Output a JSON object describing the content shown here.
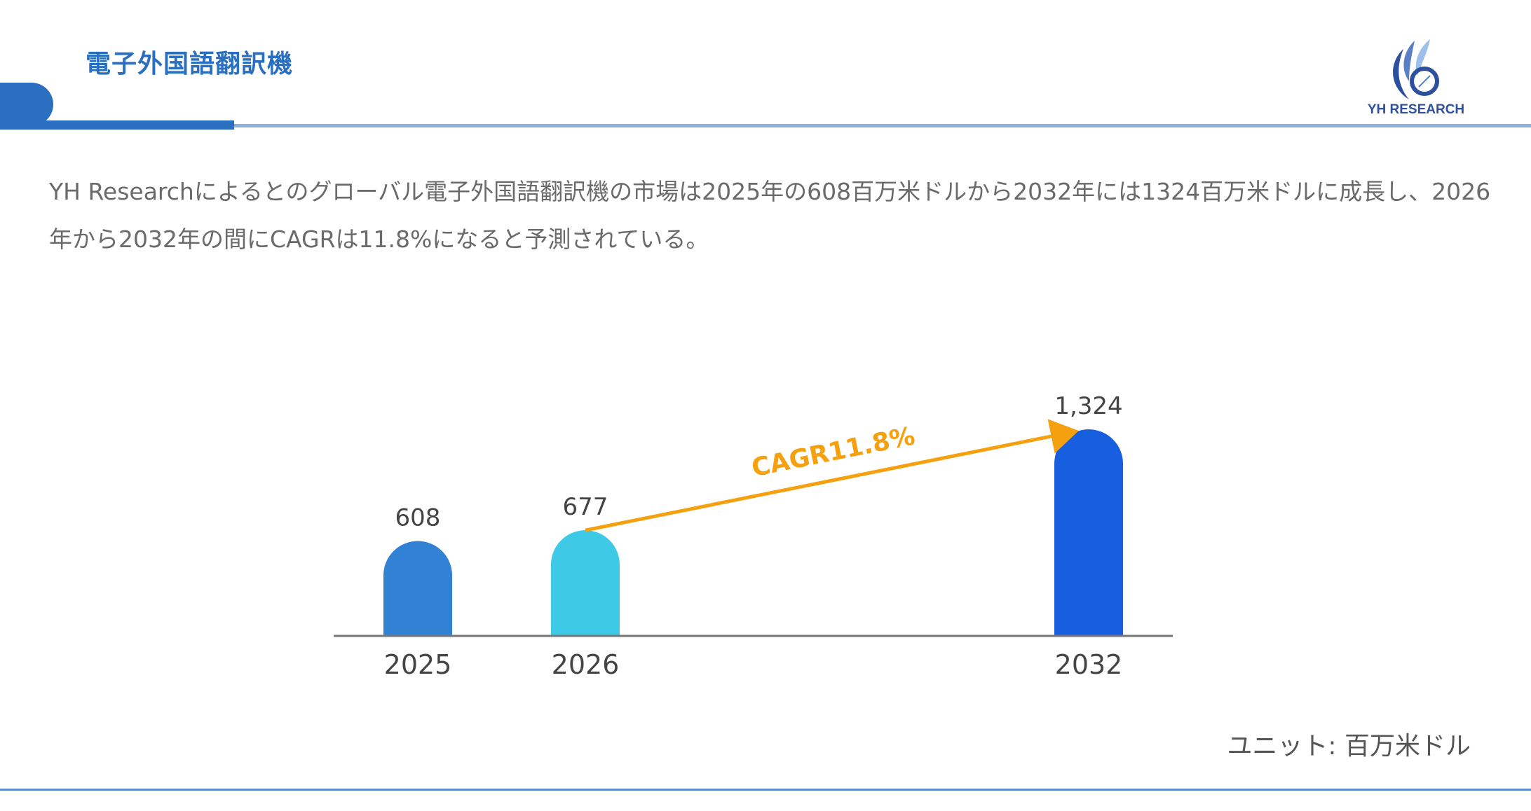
{
  "header": {
    "title": "電子外国語翻訳機",
    "logo_text": "YH RESEARCH"
  },
  "description": "YH Researchによるとのグローバル電子外国語翻訳機の市場は2025年の608百万米ドルから2032年には1324百万米ドルに成長し、2026年から2032年の間にCAGRは11.8%になると予測されている。",
  "unit_label": "ユニット: 百万米ドル",
  "colors": {
    "title": "#2a6fc0",
    "arrow": "#f5a00f",
    "bar_2025": "#3181d4",
    "bar_2026": "#3ec9e6",
    "bar_2032": "#175fdf"
  },
  "chart_data": {
    "type": "bar",
    "categories": [
      "2025",
      "2026",
      "2032"
    ],
    "values": [
      608,
      677,
      1324
    ],
    "value_labels": [
      "608",
      "677",
      "1,324"
    ],
    "annotation": {
      "text": "CAGR11.8%",
      "from": "2026",
      "to": "2032"
    },
    "grid": false,
    "ylim": [
      0,
      1324
    ]
  }
}
